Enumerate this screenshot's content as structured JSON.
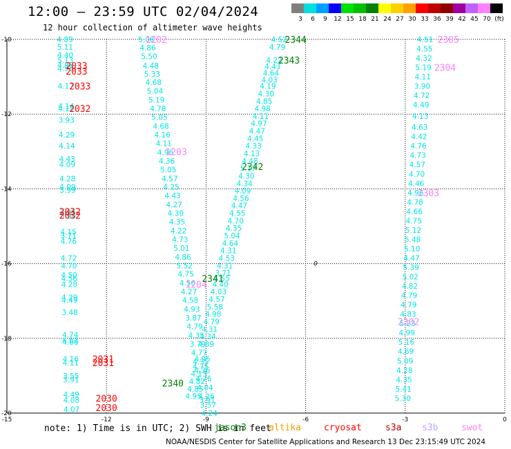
{
  "header": {
    "title": "12:00 – 23:59 UTC 02/04/2024",
    "subtitle": "12 hour collection of altimeter wave heights"
  },
  "colorbar": {
    "labels": [
      "3",
      "6",
      "9",
      "12",
      "15",
      "18",
      "21",
      "24",
      "27",
      "30",
      "33",
      "36",
      "39",
      "42",
      "45",
      "70",
      "(ft)"
    ],
    "colors": [
      "#7f7f7f",
      "#00e0e0",
      "#00a0ff",
      "#0000ff",
      "#00e000",
      "#00c000",
      "#008000",
      "#ffff00",
      "#ffd000",
      "#ffa000",
      "#ff0000",
      "#c00000",
      "#900000",
      "#a000a0",
      "#c060ff",
      "#ff80ff",
      "#000000"
    ]
  },
  "footer": {
    "note": "note:  1) Time is in UTC; 2) SWH is in feet",
    "credit": "NOAA/NESDIS Center for Satellite Applications and Research    13 Dec 23:15:49 UTC 2024"
  },
  "satellites": [
    {
      "name": "jason3",
      "color": "#008000"
    },
    {
      "name": "altika",
      "color": "#ff9900"
    },
    {
      "name": "cryosat",
      "color": "#ff0000"
    },
    {
      "name": "s3a",
      "color": "#c00000"
    },
    {
      "name": "s3b",
      "color": "#c0a0ff"
    },
    {
      "name": "swot",
      "color": "#ff80ff"
    }
  ],
  "chart_data": {
    "type": "scatter",
    "xlim": [
      -15,
      0
    ],
    "ylim": [
      -20,
      -10
    ],
    "xticks": [
      -15,
      -12,
      -9,
      -6,
      -3,
      0
    ],
    "yticks": [
      -10,
      -12,
      -14,
      -16,
      -18,
      -20
    ],
    "grid": true,
    "marker_label": "0",
    "marker": {
      "x": -5.7,
      "y": -16.0
    },
    "pass_labels": [
      {
        "text": "2033",
        "x": -12.9,
        "y": -10.7,
        "color": "#ff0000"
      },
      {
        "text": "2033",
        "x": -12.9,
        "y": -10.85,
        "color": "#ff0000"
      },
      {
        "text": "2033",
        "x": -12.8,
        "y": -11.25,
        "color": "#ff0000"
      },
      {
        "text": "2032",
        "x": -12.8,
        "y": -11.85,
        "color": "#ff0000"
      },
      {
        "text": "2032",
        "x": -13.1,
        "y": -14.6,
        "color": "#ff0000"
      },
      {
        "text": "2032",
        "x": -13.1,
        "y": -14.7,
        "color": "#ff0000"
      },
      {
        "text": "2031",
        "x": -12.1,
        "y": -18.55,
        "color": "#ff0000"
      },
      {
        "text": "2031",
        "x": -12.1,
        "y": -18.65,
        "color": "#ff0000"
      },
      {
        "text": "2030",
        "x": -12.0,
        "y": -19.6,
        "color": "#ff0000"
      },
      {
        "text": "2030",
        "x": -12.0,
        "y": -19.85,
        "color": "#ff0000"
      },
      {
        "text": "1202",
        "x": -10.5,
        "y": -10.0,
        "color": "#ff80ff"
      },
      {
        "text": "1203",
        "x": -9.9,
        "y": -13.0,
        "color": "#ff80ff"
      },
      {
        "text": "1204",
        "x": -9.3,
        "y": -16.55,
        "color": "#ff80ff"
      },
      {
        "text": "2344",
        "x": -6.3,
        "y": -10.0,
        "color": "#008000"
      },
      {
        "text": "2343",
        "x": -6.5,
        "y": -10.55,
        "color": "#008000"
      },
      {
        "text": "2342",
        "x": -7.6,
        "y": -13.4,
        "color": "#008000"
      },
      {
        "text": "2341",
        "x": -8.8,
        "y": -16.4,
        "color": "#008000"
      },
      {
        "text": "2340",
        "x": -10.0,
        "y": -19.2,
        "color": "#008000"
      },
      {
        "text": "2305",
        "x": -1.7,
        "y": -10.0,
        "color": "#ff80ff"
      },
      {
        "text": "2304",
        "x": -1.8,
        "y": -10.75,
        "color": "#ff80ff"
      },
      {
        "text": "2303",
        "x": -2.3,
        "y": -14.1,
        "color": "#ff80ff"
      },
      {
        "text": "2302",
        "x": -2.9,
        "y": -17.55,
        "color": "#ff80ff"
      }
    ],
    "tracks": [
      {
        "name": "2030-2033",
        "x0": -13.25,
        "x1": -13.05,
        "y0": -10.0,
        "y1": -20.0,
        "values": [
          "4.89",
          "5.11",
          "4.40",
          "5.13",
          "4.98",
          "4.93",
          "4.17",
          "4.14",
          "4.19",
          "3.93",
          "4.29",
          "4.14",
          "4.43",
          "4.09",
          "4.28",
          "4.09",
          "3.99",
          "3.95",
          "3.94",
          "4.15",
          "3.71",
          "4.76",
          "4.72",
          "4.70",
          "4.50",
          "4.56",
          "4.28",
          "4.29",
          "4.49",
          "3.48",
          "4.74",
          "4.63",
          "4.66",
          "4.16",
          "4.11",
          "3.55",
          "3.91",
          "4.49",
          "4.08",
          "4.07"
        ],
        "ys": [
          -10.0,
          -10.2,
          -10.42,
          -10.55,
          -10.68,
          -10.78,
          -11.25,
          -11.78,
          -11.85,
          -12.15,
          -12.55,
          -12.85,
          -13.2,
          -13.35,
          -13.72,
          -13.95,
          -14.03,
          -14.62,
          -14.72,
          -15.15,
          -15.25,
          -15.4,
          -15.85,
          -16.05,
          -16.3,
          -16.4,
          -16.55,
          -16.9,
          -16.98,
          -17.3,
          -17.9,
          -18.05,
          -18.1,
          -18.55,
          -18.65,
          -19.0,
          -19.1,
          -19.5,
          -19.65,
          -19.9
        ]
      },
      {
        "name": "1202-1204",
        "x0": -10.8,
        "x1": -8.9,
        "y0": -10.0,
        "y1": -20.0,
        "values": [
          "5.08",
          "4.86",
          "5.50",
          "4.48",
          "5.33",
          "4.68",
          "5.04",
          "5.19",
          "4.78",
          "5.05",
          "4.68",
          "4.16",
          "4.11",
          "4.96",
          "4.36",
          "5.05",
          "4.57",
          "4.25",
          "4.43",
          "4.27",
          "4.30",
          "4.35",
          "4.22",
          "4.73",
          "5.01",
          "4.86",
          "5.52",
          "4.75",
          "4.56",
          "4.27",
          "4.58",
          "4.93",
          "3.87",
          "4.79",
          "4.35",
          "3.79",
          "4.77",
          "4.35",
          "4.36",
          "4.76",
          "4.04",
          "4.26",
          "3.91",
          "3.57",
          "4.24"
        ],
        "ys": [
          -10.0,
          -10.22,
          -10.45,
          -10.7,
          -10.92,
          -11.15,
          -11.38,
          -11.62,
          -11.85,
          -12.08,
          -12.32,
          -12.55,
          -12.78,
          -13.02,
          -13.25,
          -13.48,
          -13.72,
          -13.95,
          -14.18,
          -14.42,
          -14.65,
          -14.88,
          -15.12,
          -15.35,
          -15.58,
          -15.82,
          -16.05,
          -16.28,
          -16.52,
          -16.75,
          -16.98,
          -17.22,
          -17.45,
          -17.68,
          -17.92,
          -18.15,
          -18.38,
          -18.62,
          -18.85,
          -19.08,
          -19.32,
          -19.55,
          -19.65,
          -19.78,
          -20.0
        ]
      },
      {
        "name": "2340-2344",
        "x0": -6.8,
        "x1": -9.5,
        "y0": -10.0,
        "y1": -20.0,
        "values": [
          "4.52",
          "4.79",
          "4.22",
          "4.43",
          "4.64",
          "4.03",
          "4.19",
          "4.30",
          "4.85",
          "4.98",
          "4.11",
          "4.97",
          "4.47",
          "4.45",
          "4.33",
          "4.13",
          "4.48",
          "5.17",
          "4.30",
          "4.34",
          "4.09",
          "4.56",
          "4.47",
          "4.55",
          "4.70",
          "4.35",
          "5.04",
          "4.64",
          "4.31",
          "4.53",
          "4.31",
          "3.71",
          "4.55",
          "4.40",
          "4.03",
          "4.57",
          "5.58",
          "4.98",
          "4.79",
          "4.31",
          "4.34",
          "4.89",
          "4.95",
          "4.75",
          "4.13",
          "4.82",
          "4.85",
          "4.95"
        ],
        "ys": [
          -10.0,
          -10.2,
          -10.55,
          -10.72,
          -10.9,
          -11.08,
          -11.25,
          -11.45,
          -11.65,
          -11.85,
          -12.05,
          -12.25,
          -12.45,
          -12.65,
          -12.85,
          -13.05,
          -13.25,
          -13.45,
          -13.65,
          -13.85,
          -14.05,
          -14.25,
          -14.45,
          -14.65,
          -14.85,
          -15.05,
          -15.25,
          -15.45,
          -15.65,
          -15.85,
          -16.05,
          -16.25,
          -16.4,
          -16.55,
          -16.75,
          -16.95,
          -17.15,
          -17.35,
          -17.55,
          -17.75,
          -17.95,
          -18.15,
          -18.55,
          -18.75,
          -18.95,
          -19.15,
          -19.35,
          -19.55
        ]
      },
      {
        "name": "2302-2305",
        "x0": -2.4,
        "x1": -3.1,
        "y0": -10.0,
        "y1": -20.0,
        "values": [
          "4.51",
          "4.55",
          "4.32",
          "5.19",
          "4.11",
          "3.90",
          "4.72",
          "4.49",
          "4.13",
          "4.63",
          "4.42",
          "4.76",
          "4.73",
          "4.57",
          "4.70",
          "4.46",
          "4.96",
          "4.78",
          "4.66",
          "4.75",
          "5.12",
          "5.48",
          "5.10",
          "4.47",
          "5.39",
          "5.02",
          "4.82",
          "4.79",
          "4.79",
          "4.83",
          "5.23",
          "4.99",
          "5.16",
          "4.69",
          "5.09",
          "4.28",
          "4.35",
          "5.41",
          "5.30"
        ],
        "ys": [
          -10.0,
          -10.25,
          -10.5,
          -10.75,
          -11.0,
          -11.25,
          -11.5,
          -11.75,
          -12.05,
          -12.35,
          -12.6,
          -12.85,
          -13.1,
          -13.35,
          -13.6,
          -13.85,
          -14.1,
          -14.35,
          -14.6,
          -14.85,
          -15.1,
          -15.35,
          -15.6,
          -15.85,
          -16.1,
          -16.35,
          -16.6,
          -16.85,
          -17.1,
          -17.35,
          -17.6,
          -17.85,
          -18.1,
          -18.35,
          -18.6,
          -18.85,
          -19.1,
          -19.35,
          -19.6
        ]
      }
    ]
  }
}
